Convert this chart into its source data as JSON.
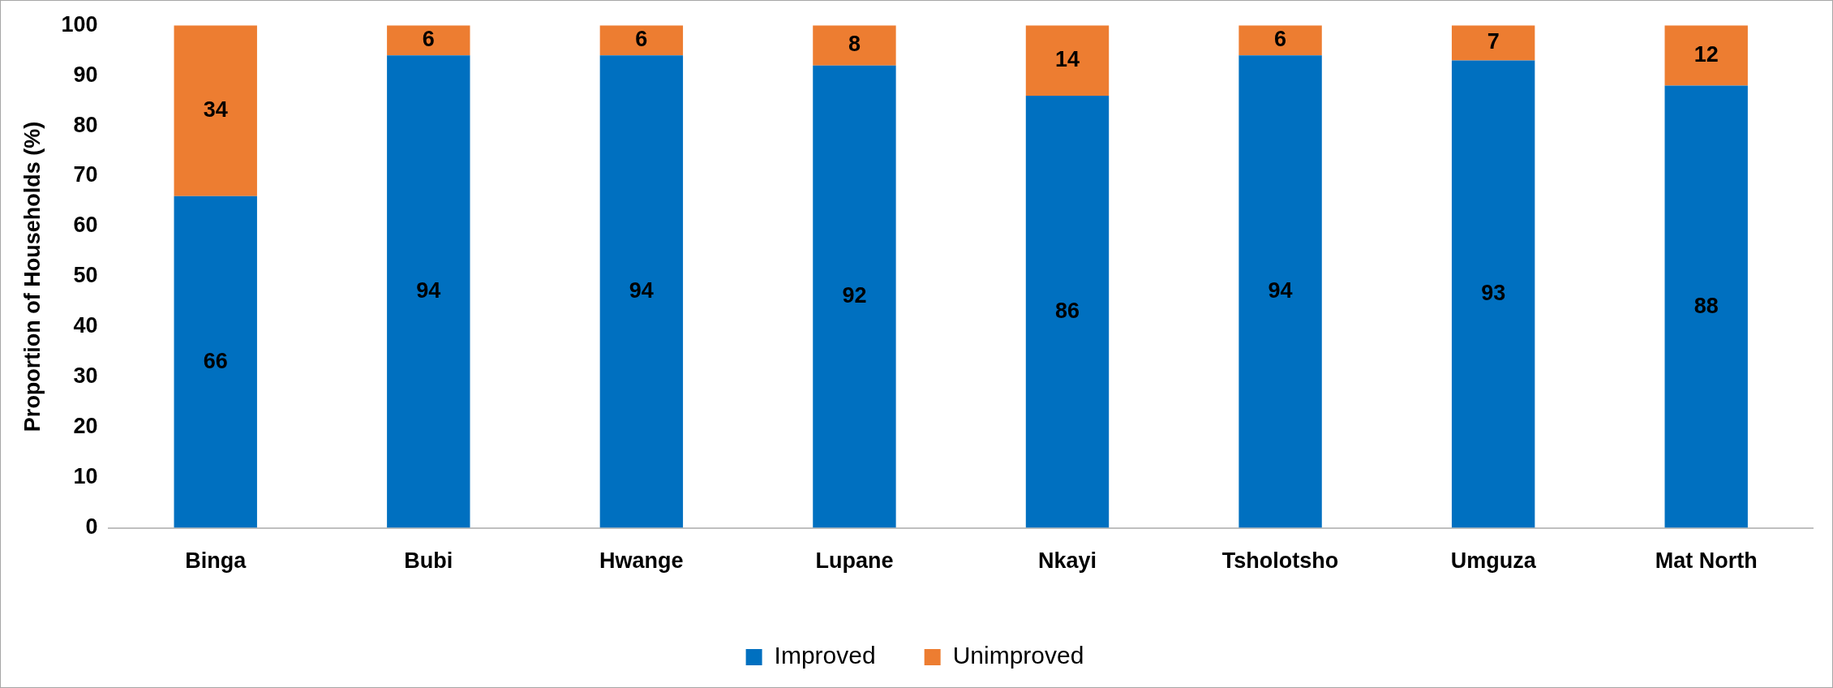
{
  "chart_data": {
    "type": "bar",
    "stacked": true,
    "ylabel": "Proportion of Households (%)",
    "categories": [
      "Binga",
      "Bubi",
      "Hwange",
      "Lupane",
      "Nkayi",
      "Tsholotsho",
      "Umguza",
      "Mat North"
    ],
    "series": [
      {
        "name": "Improved",
        "color": "#0070c0",
        "values": [
          66,
          94,
          94,
          92,
          86,
          94,
          93,
          88
        ]
      },
      {
        "name": "Unimproved",
        "color": "#ed7d31",
        "values": [
          34,
          6,
          6,
          8,
          14,
          6,
          7,
          12
        ]
      }
    ],
    "ylim": [
      0,
      100
    ],
    "yticks": [
      0,
      10,
      20,
      30,
      40,
      50,
      60,
      70,
      80,
      90,
      100
    ],
    "grid": false,
    "legend": "bottom",
    "data_labels": true
  }
}
